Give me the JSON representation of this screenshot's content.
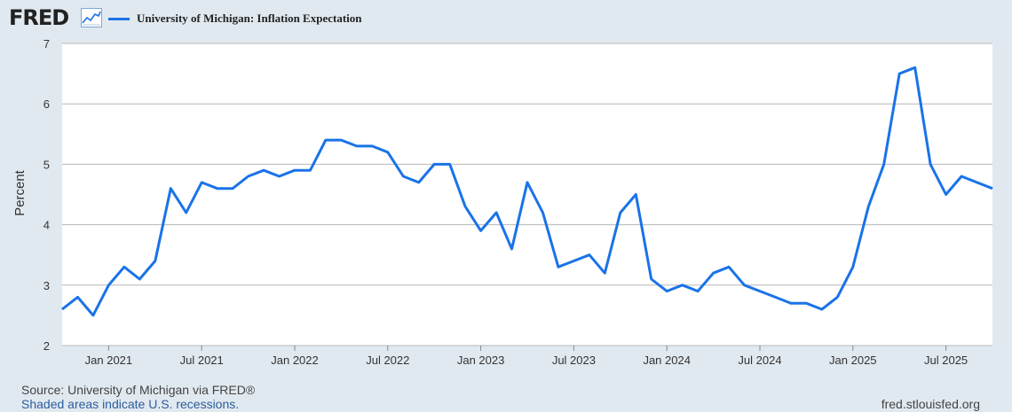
{
  "header": {
    "logo_text": "FRED",
    "series_title": "University of Michigan: Inflation Expectation"
  },
  "footer": {
    "source": "Source: University of Michigan via FRED®",
    "note": "Shaded areas indicate U.S. recessions.",
    "url": "fred.stlouisfed.org"
  },
  "colors": {
    "line": "#1a73e8",
    "background": "#e1e9f0",
    "plot_background": "#ffffff",
    "grid": "#b8b8b8"
  },
  "chart_data": {
    "type": "line",
    "title": "",
    "xlabel": "",
    "ylabel": "Percent",
    "ylim": [
      2,
      7
    ],
    "yticks": [
      2,
      3,
      4,
      5,
      6,
      7
    ],
    "xticks": [
      "Jan 2021",
      "Jul 2021",
      "Jan 2022",
      "Jul 2022",
      "Jan 2023",
      "Jul 2023",
      "Jan 2024",
      "Jul 2024",
      "Jan 2025",
      "Jul 2025"
    ],
    "grid": true,
    "legend_position": "top-left",
    "series": [
      {
        "name": "University of Michigan: Inflation Expectation",
        "color": "#1a73e8",
        "x": [
          "2020-10",
          "2020-11",
          "2020-12",
          "2021-01",
          "2021-02",
          "2021-03",
          "2021-04",
          "2021-05",
          "2021-06",
          "2021-07",
          "2021-08",
          "2021-09",
          "2021-10",
          "2021-11",
          "2021-12",
          "2022-01",
          "2022-02",
          "2022-03",
          "2022-04",
          "2022-05",
          "2022-06",
          "2022-07",
          "2022-08",
          "2022-09",
          "2022-10",
          "2022-11",
          "2022-12",
          "2023-01",
          "2023-02",
          "2023-03",
          "2023-04",
          "2023-05",
          "2023-06",
          "2023-07",
          "2023-08",
          "2023-09",
          "2023-10",
          "2023-11",
          "2023-12",
          "2024-01",
          "2024-02",
          "2024-03",
          "2024-04",
          "2024-05",
          "2024-06",
          "2024-07",
          "2024-08",
          "2024-09",
          "2024-10",
          "2024-11",
          "2024-12",
          "2025-01",
          "2025-02",
          "2025-03",
          "2025-04",
          "2025-05",
          "2025-06",
          "2025-07",
          "2025-08",
          "2025-09",
          "2025-10"
        ],
        "values": [
          2.6,
          2.8,
          2.5,
          3.0,
          3.3,
          3.1,
          3.4,
          4.6,
          4.2,
          4.7,
          4.6,
          4.6,
          4.8,
          4.9,
          4.8,
          4.9,
          4.9,
          5.4,
          5.4,
          5.3,
          5.3,
          5.2,
          4.8,
          4.7,
          5.0,
          5.0,
          4.3,
          3.9,
          4.2,
          3.6,
          4.7,
          4.2,
          3.3,
          3.4,
          3.5,
          3.2,
          4.2,
          4.5,
          3.1,
          2.9,
          3.0,
          2.9,
          3.2,
          3.3,
          3.0,
          2.9,
          2.8,
          2.7,
          2.7,
          2.6,
          2.8,
          3.3,
          4.3,
          5.0,
          6.5,
          6.6,
          5.0,
          4.5,
          4.8,
          4.7,
          4.6
        ]
      }
    ]
  }
}
